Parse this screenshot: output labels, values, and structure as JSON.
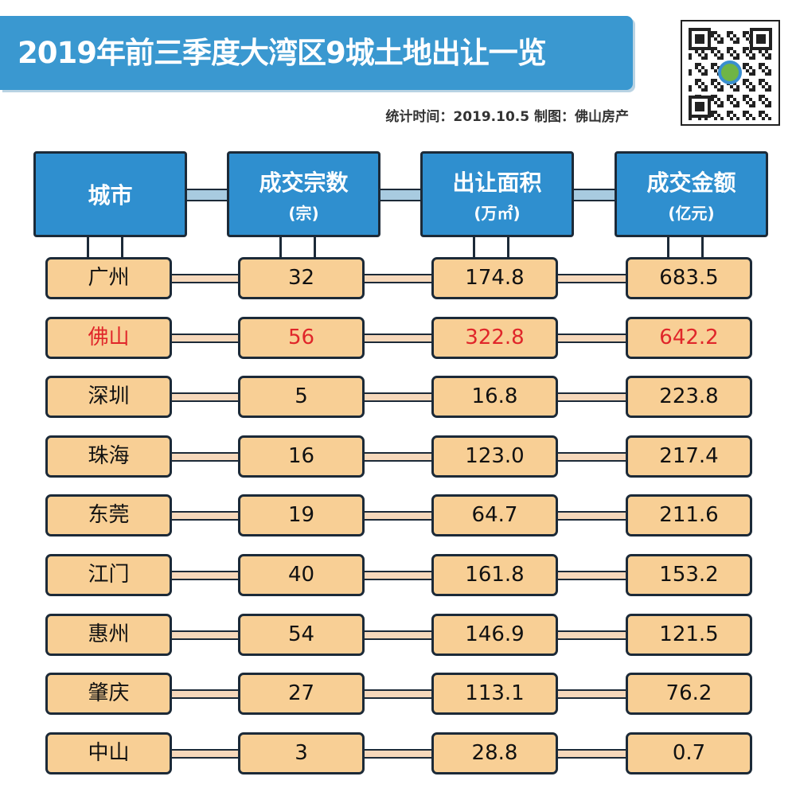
{
  "title": "2019年前三季度大湾区9城土地出让一览",
  "subtitle": "统计时间：2019.10.5   制图：佛山房产",
  "qr_code": "qr-code-icon",
  "colors": {
    "header": "#2f8fcf",
    "cell": "#f8cf95",
    "highlight": "#e0262a",
    "title_bar": "#3a98d0"
  },
  "chart_data": {
    "type": "table",
    "columns": [
      {
        "label": "城市",
        "unit": ""
      },
      {
        "label": "成交宗数",
        "unit": "(宗)"
      },
      {
        "label": "出让面积",
        "unit": "(万㎡)"
      },
      {
        "label": "成交金额",
        "unit": "(亿元)"
      }
    ],
    "rows": [
      [
        "广州",
        "32",
        "174.8",
        "683.5"
      ],
      [
        "佛山",
        "56",
        "322.8",
        "642.2"
      ],
      [
        "深圳",
        "5",
        "16.8",
        "223.8"
      ],
      [
        "珠海",
        "16",
        "123.0",
        "217.4"
      ],
      [
        "东莞",
        "19",
        "64.7",
        "211.6"
      ],
      [
        "江门",
        "40",
        "161.8",
        "153.2"
      ],
      [
        "惠州",
        "54",
        "146.9",
        "121.5"
      ],
      [
        "肇庆",
        "27",
        "113.1",
        "76.2"
      ],
      [
        "中山",
        "3",
        "28.8",
        "0.7"
      ]
    ],
    "highlighted_row": "佛山"
  }
}
